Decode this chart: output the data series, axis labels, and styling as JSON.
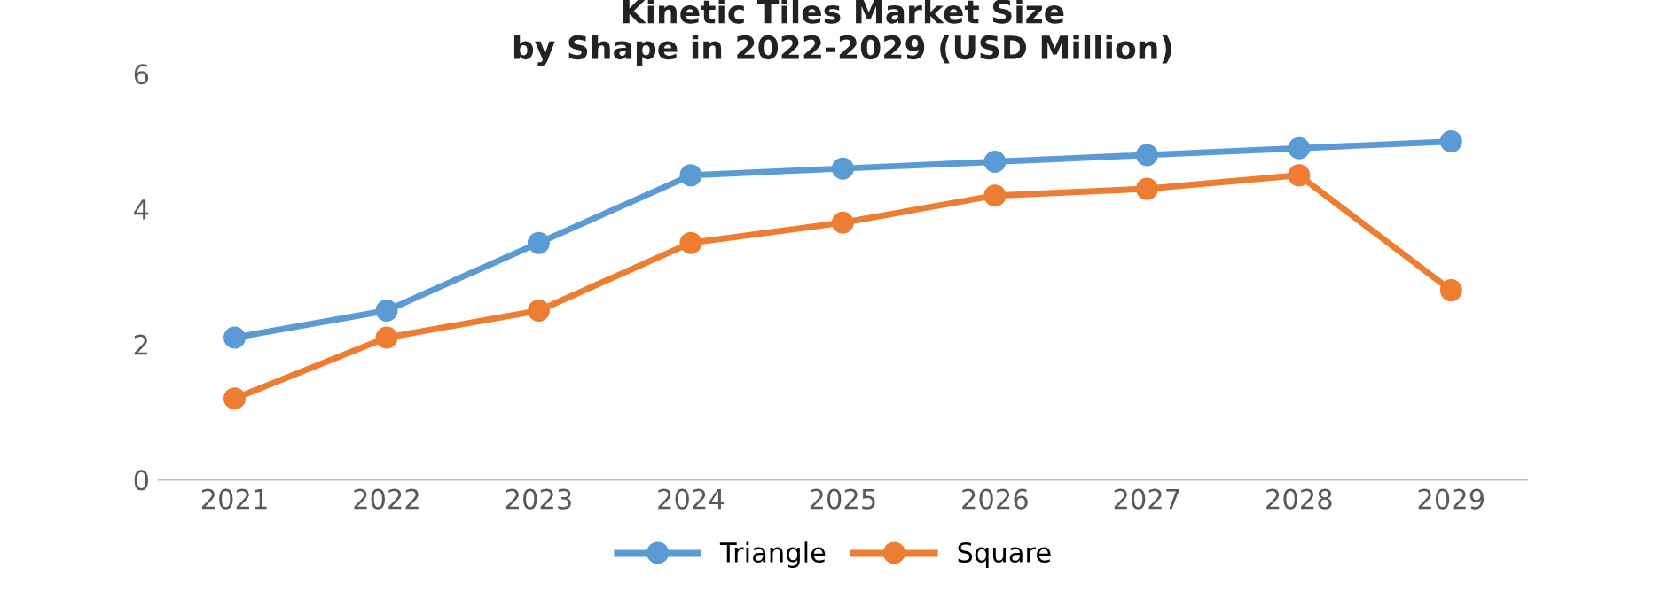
{
  "chart_data": {
    "type": "line",
    "title": "Kinetic Tiles Market Size\nby Shape in 2022-2029 (USD Million)",
    "categories": [
      "2021",
      "2022",
      "2023",
      "2024",
      "2025",
      "2026",
      "2027",
      "2028",
      "2029"
    ],
    "series": [
      {
        "name": "Triangle",
        "color": "#5b9bd5",
        "values": [
          2.1,
          2.5,
          3.5,
          4.5,
          4.6,
          4.7,
          4.8,
          4.9,
          5.0
        ]
      },
      {
        "name": "Square",
        "color": "#ed7d31",
        "values": [
          1.2,
          2.1,
          2.5,
          3.5,
          3.8,
          4.2,
          4.3,
          4.5,
          2.8
        ]
      }
    ],
    "ylim": [
      0,
      6
    ],
    "yticks": [
      0,
      2,
      4,
      6
    ],
    "grid": false,
    "legend": "bottom",
    "marker": "circle",
    "line_style": "solid"
  }
}
